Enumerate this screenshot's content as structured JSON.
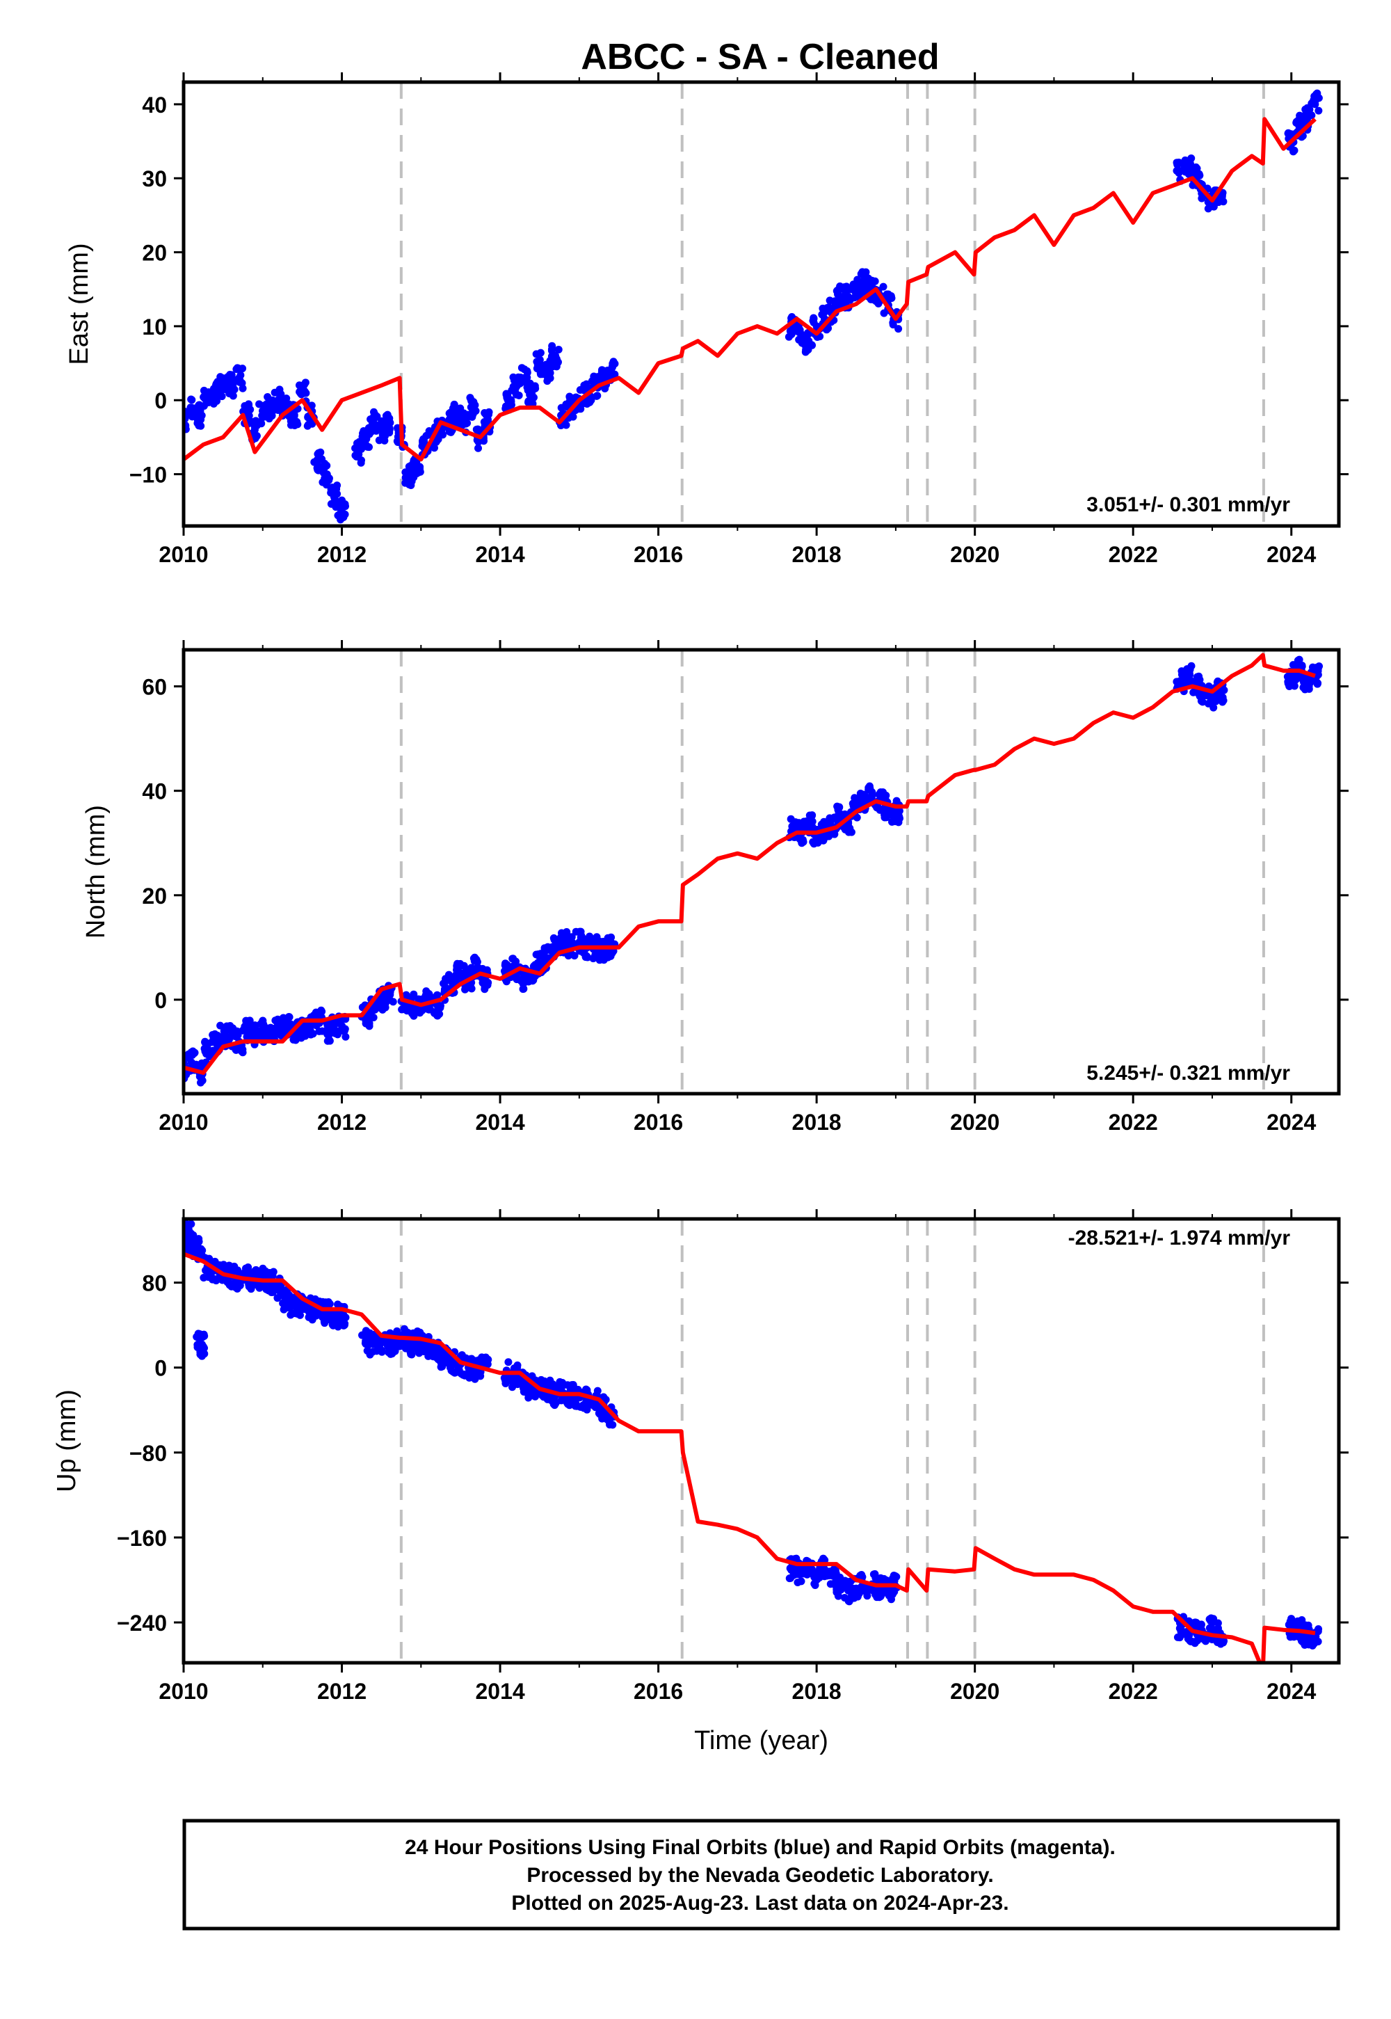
{
  "title": "ABCC  - SA - Cleaned",
  "footer": {
    "line1": "24 Hour Positions Using Final Orbits (blue) and Rapid Orbits (magenta).",
    "line2": "Processed by the Nevada Geodetic Laboratory.",
    "line3": "Plotted on 2025-Aug-23. Last data on 2024-Apr-23."
  },
  "colors": {
    "data": "#0000ff",
    "model": "#ff0000",
    "steps": "#c0c0c0"
  },
  "chart_data": [
    {
      "type": "scatter",
      "ylabel": "East (mm)",
      "xlabel": "",
      "rate_label": "3.051+/- 0.301 mm/yr",
      "xlim": [
        2010.0,
        2024.6
      ],
      "ylim": [
        -17,
        43
      ],
      "xticks": [
        "2010",
        "2012",
        "2014",
        "2016",
        "2018",
        "2020",
        "2022",
        "2024"
      ],
      "yticks": [
        "−10",
        "0",
        "10",
        "20",
        "30",
        "40"
      ],
      "ytick_values": [
        -10,
        0,
        10,
        20,
        30,
        40
      ],
      "step_epochs": [
        2012.75,
        2016.3,
        2019.15,
        2019.4,
        2020.0,
        2023.65
      ],
      "series": [
        {
          "kind": "data",
          "x": [
            2010.0,
            2010.1,
            2010.2,
            2010.3,
            2010.4,
            2010.5,
            2010.6,
            2010.7,
            2010.8,
            2010.9,
            2011.0,
            2011.1,
            2011.2,
            2011.3,
            2011.4,
            2011.5,
            2011.6,
            2011.7,
            2011.8,
            2011.9,
            2012.0,
            2012.2,
            2012.3,
            2012.4,
            2012.5,
            2012.6,
            2012.75,
            2012.85,
            2012.95,
            2013.05,
            2013.15,
            2013.25,
            2013.35,
            2013.45,
            2013.55,
            2013.65,
            2013.75,
            2013.85,
            2014.1,
            2014.2,
            2014.3,
            2014.4,
            2014.5,
            2014.6,
            2014.7,
            2014.8,
            2014.9,
            2015.0,
            2015.1,
            2015.2,
            2015.3,
            2015.4,
            2017.7,
            2017.8,
            2017.9,
            2018.0,
            2018.1,
            2018.2,
            2018.3,
            2018.4,
            2018.5,
            2018.6,
            2018.7,
            2018.8,
            2018.9,
            2019.0,
            2022.6,
            2022.7,
            2022.8,
            2022.9,
            2023.0,
            2023.1,
            2024.0,
            2024.1,
            2024.2,
            2024.3
          ],
          "y": [
            -3,
            -1,
            -2,
            0,
            1,
            2,
            2,
            3,
            -2,
            -4,
            -2,
            -1,
            0,
            -1,
            -2,
            1,
            -2,
            -8,
            -10,
            -13,
            -15,
            -7,
            -5,
            -3,
            -4,
            -3,
            -5,
            -10,
            -9,
            -6,
            -5,
            -4,
            -3,
            -2,
            -3,
            -1,
            -5,
            -3,
            0,
            2,
            3,
            1,
            5,
            4,
            6,
            -2,
            -1,
            0,
            1,
            2,
            3,
            4,
            10,
            9,
            8,
            10,
            11,
            12,
            14,
            14,
            15,
            16,
            15,
            14,
            13,
            11,
            31,
            32,
            30,
            28,
            27,
            28,
            35,
            37,
            38,
            40
          ]
        },
        {
          "kind": "model",
          "x": [
            2010.0,
            2010.25,
            2010.5,
            2010.75,
            2010.9,
            2011.25,
            2011.5,
            2011.75,
            2012.0,
            2012.25,
            2012.5,
            2012.73,
            2012.76,
            2013.0,
            2013.25,
            2013.5,
            2013.75,
            2014.0,
            2014.25,
            2014.5,
            2014.75,
            2015.0,
            2015.25,
            2015.5,
            2015.75,
            2016.0,
            2016.29,
            2016.31,
            2016.5,
            2016.75,
            2017.0,
            2017.25,
            2017.5,
            2017.75,
            2018.0,
            2018.25,
            2018.5,
            2018.75,
            2019.0,
            2019.14,
            2019.16,
            2019.39,
            2019.41,
            2019.75,
            2019.99,
            2020.01,
            2020.25,
            2020.5,
            2020.75,
            2021.0,
            2021.25,
            2021.5,
            2021.75,
            2022.0,
            2022.25,
            2022.5,
            2022.75,
            2023.0,
            2023.25,
            2023.5,
            2023.64,
            2023.66,
            2023.9,
            2024.1,
            2024.3
          ],
          "y": [
            -8,
            -6,
            -5,
            -2,
            -7,
            -2,
            0,
            -4,
            0,
            1,
            2,
            3,
            -6,
            -8,
            -3,
            -4,
            -5,
            -2,
            -1,
            -1,
            -3,
            0,
            2,
            3,
            1,
            5,
            6,
            7,
            8,
            6,
            9,
            10,
            9,
            11,
            9,
            12,
            13,
            15,
            11,
            13,
            16,
            17,
            18,
            20,
            17,
            20,
            22,
            23,
            25,
            21,
            25,
            26,
            28,
            24,
            28,
            29,
            30,
            27,
            31,
            33,
            32,
            38,
            34,
            36,
            38
          ]
        }
      ]
    },
    {
      "type": "scatter",
      "ylabel": "North (mm)",
      "xlabel": "",
      "rate_label": "5.245+/- 0.321 mm/yr",
      "xlim": [
        2010.0,
        2024.6
      ],
      "ylim": [
        -18,
        67
      ],
      "xticks": [
        "2010",
        "2012",
        "2014",
        "2016",
        "2018",
        "2020",
        "2022",
        "2024"
      ],
      "yticks": [
        "0",
        "20",
        "40",
        "60"
      ],
      "ytick_values": [
        0,
        20,
        40,
        60
      ],
      "step_epochs": [
        2012.75,
        2016.3,
        2019.15,
        2019.4,
        2020.0,
        2023.65
      ],
      "series": [
        {
          "kind": "data",
          "x": [
            2010.0,
            2010.1,
            2010.2,
            2010.3,
            2010.4,
            2010.5,
            2010.6,
            2010.7,
            2010.8,
            2010.9,
            2011.0,
            2011.1,
            2011.2,
            2011.3,
            2011.4,
            2011.5,
            2011.6,
            2011.7,
            2011.8,
            2011.9,
            2012.0,
            2012.3,
            2012.4,
            2012.5,
            2012.6,
            2012.8,
            2012.9,
            2013.0,
            2013.1,
            2013.2,
            2013.3,
            2013.4,
            2013.5,
            2013.6,
            2013.7,
            2013.8,
            2014.1,
            2014.2,
            2014.3,
            2014.4,
            2014.5,
            2014.6,
            2014.7,
            2014.8,
            2014.9,
            2015.0,
            2015.1,
            2015.2,
            2015.3,
            2015.4,
            2017.7,
            2017.8,
            2017.9,
            2018.0,
            2018.1,
            2018.2,
            2018.3,
            2018.4,
            2018.5,
            2018.6,
            2018.7,
            2018.8,
            2018.9,
            2019.0,
            2022.6,
            2022.7,
            2022.8,
            2022.9,
            2023.0,
            2023.1,
            2024.0,
            2024.1,
            2024.2,
            2024.3
          ],
          "y": [
            -13,
            -12,
            -14,
            -10,
            -8,
            -7,
            -7,
            -8,
            -6,
            -7,
            -6,
            -7,
            -5,
            -5,
            -6,
            -6,
            -5,
            -4,
            -6,
            -5,
            -5,
            -3,
            -2,
            0,
            1,
            0,
            -1,
            -2,
            0,
            -1,
            2,
            3,
            5,
            4,
            6,
            4,
            5,
            6,
            4,
            5,
            7,
            8,
            10,
            11,
            10,
            11,
            10,
            10,
            9,
            10,
            33,
            32,
            34,
            31,
            32,
            33,
            35,
            34,
            37,
            38,
            39,
            38,
            37,
            36,
            61,
            62,
            60,
            59,
            58,
            59,
            62,
            63,
            61,
            62
          ]
        },
        {
          "kind": "model",
          "x": [
            2010.0,
            2010.25,
            2010.5,
            2010.75,
            2011.0,
            2011.25,
            2011.5,
            2011.75,
            2012.0,
            2012.25,
            2012.5,
            2012.73,
            2012.76,
            2013.0,
            2013.25,
            2013.5,
            2013.75,
            2014.0,
            2014.25,
            2014.5,
            2014.75,
            2015.0,
            2015.25,
            2015.5,
            2015.75,
            2016.0,
            2016.29,
            2016.31,
            2016.5,
            2016.75,
            2017.0,
            2017.25,
            2017.5,
            2017.75,
            2018.0,
            2018.25,
            2018.5,
            2018.75,
            2019.0,
            2019.14,
            2019.16,
            2019.39,
            2019.41,
            2019.75,
            2019.99,
            2020.01,
            2020.25,
            2020.5,
            2020.75,
            2021.0,
            2021.25,
            2021.5,
            2021.75,
            2022.0,
            2022.25,
            2022.5,
            2022.75,
            2023.0,
            2023.25,
            2023.5,
            2023.64,
            2023.66,
            2023.9,
            2024.1,
            2024.3
          ],
          "y": [
            -13,
            -14,
            -9,
            -8,
            -8,
            -8,
            -4,
            -4,
            -3,
            -3,
            2,
            3,
            0,
            -1,
            0,
            3,
            5,
            4,
            6,
            5,
            9,
            10,
            10,
            10,
            14,
            15,
            15,
            22,
            24,
            27,
            28,
            27,
            30,
            32,
            32,
            33,
            36,
            38,
            37,
            37,
            38,
            38,
            39,
            43,
            44,
            44,
            45,
            48,
            50,
            49,
            50,
            53,
            55,
            54,
            56,
            59,
            60,
            59,
            62,
            64,
            66,
            64,
            63,
            63,
            62
          ]
        }
      ]
    },
    {
      "type": "scatter",
      "ylabel": "Up (mm)",
      "xlabel": "Time (year)",
      "rate_label": "-28.521+/- 1.974 mm/yr",
      "xlim": [
        2010.0,
        2024.6
      ],
      "ylim": [
        -278,
        140
      ],
      "xticks": [
        "2010",
        "2012",
        "2014",
        "2016",
        "2018",
        "2020",
        "2022",
        "2024"
      ],
      "yticks": [
        "80",
        "0",
        "−80",
        "−160",
        "−240"
      ],
      "ytick_values": [
        80,
        0,
        -80,
        -160,
        -240
      ],
      "step_epochs": [
        2012.75,
        2016.3,
        2019.15,
        2019.4,
        2020.0,
        2023.65
      ],
      "series": [
        {
          "kind": "data",
          "x": [
            2010.0,
            2010.05,
            2010.1,
            2010.15,
            2010.2,
            2010.3,
            2010.4,
            2010.5,
            2010.6,
            2010.7,
            2010.8,
            2010.9,
            2011.0,
            2011.1,
            2011.2,
            2011.3,
            2011.4,
            2011.5,
            2011.6,
            2011.7,
            2011.8,
            2011.9,
            2012.0,
            2012.3,
            2012.4,
            2012.5,
            2012.6,
            2012.7,
            2012.8,
            2012.9,
            2013.0,
            2013.1,
            2013.2,
            2013.3,
            2013.4,
            2013.5,
            2013.6,
            2013.7,
            2013.8,
            2014.1,
            2014.2,
            2014.3,
            2014.4,
            2014.5,
            2014.6,
            2014.7,
            2014.8,
            2014.9,
            2015.0,
            2015.1,
            2015.2,
            2015.3,
            2015.4,
            2010.2,
            2010.22,
            2017.7,
            2017.8,
            2017.9,
            2018.0,
            2018.1,
            2018.2,
            2018.3,
            2018.4,
            2018.5,
            2018.6,
            2018.7,
            2018.8,
            2018.9,
            2019.0,
            2022.6,
            2022.7,
            2022.8,
            2022.9,
            2023.0,
            2023.1,
            2024.0,
            2024.1,
            2024.2,
            2024.3
          ],
          "y": [
            120,
            125,
            118,
            115,
            112,
            95,
            92,
            88,
            86,
            84,
            85,
            83,
            84,
            80,
            75,
            65,
            60,
            58,
            55,
            54,
            52,
            50,
            48,
            25,
            22,
            24,
            23,
            25,
            26,
            22,
            24,
            20,
            15,
            8,
            5,
            3,
            0,
            -2,
            1,
            -5,
            -8,
            -15,
            -18,
            -20,
            -22,
            -25,
            -24,
            -26,
            -28,
            -30,
            -32,
            -38,
            -45,
            20,
            22,
            -190,
            -192,
            -188,
            -195,
            -190,
            -196,
            -205,
            -210,
            -208,
            -205,
            -204,
            -206,
            -208,
            -206,
            -245,
            -248,
            -250,
            -252,
            -246,
            -250,
            -245,
            -248,
            -252,
            -256
          ]
        },
        {
          "kind": "model",
          "x": [
            2010.0,
            2010.25,
            2010.5,
            2010.75,
            2011.0,
            2011.25,
            2011.5,
            2011.75,
            2012.0,
            2012.25,
            2012.5,
            2012.73,
            2012.76,
            2013.0,
            2013.25,
            2013.5,
            2013.75,
            2014.0,
            2014.25,
            2014.5,
            2014.75,
            2015.0,
            2015.25,
            2015.5,
            2015.75,
            2016.0,
            2016.29,
            2016.31,
            2016.5,
            2016.75,
            2017.0,
            2017.25,
            2017.5,
            2017.75,
            2018.0,
            2018.25,
            2018.5,
            2018.75,
            2019.0,
            2019.14,
            2019.16,
            2019.39,
            2019.41,
            2019.75,
            2019.99,
            2020.01,
            2020.25,
            2020.5,
            2020.75,
            2021.0,
            2021.25,
            2021.5,
            2021.75,
            2022.0,
            2022.25,
            2022.5,
            2022.75,
            2023.0,
            2023.25,
            2023.5,
            2023.64,
            2023.66,
            2023.9,
            2024.1,
            2024.3
          ],
          "y": [
            107,
            100,
            88,
            84,
            82,
            82,
            65,
            55,
            55,
            50,
            30,
            28,
            28,
            27,
            23,
            5,
            0,
            -5,
            -5,
            -20,
            -25,
            -25,
            -30,
            -50,
            -60,
            -60,
            -60,
            -80,
            -145,
            -148,
            -152,
            -160,
            -180,
            -185,
            -185,
            -185,
            -200,
            -205,
            -205,
            -210,
            -190,
            -210,
            -190,
            -192,
            -190,
            -170,
            -180,
            -190,
            -195,
            -195,
            -195,
            -200,
            -210,
            -225,
            -230,
            -230,
            -248,
            -252,
            -254,
            -260,
            -285,
            -245,
            -247,
            -248,
            -250
          ]
        }
      ]
    }
  ]
}
